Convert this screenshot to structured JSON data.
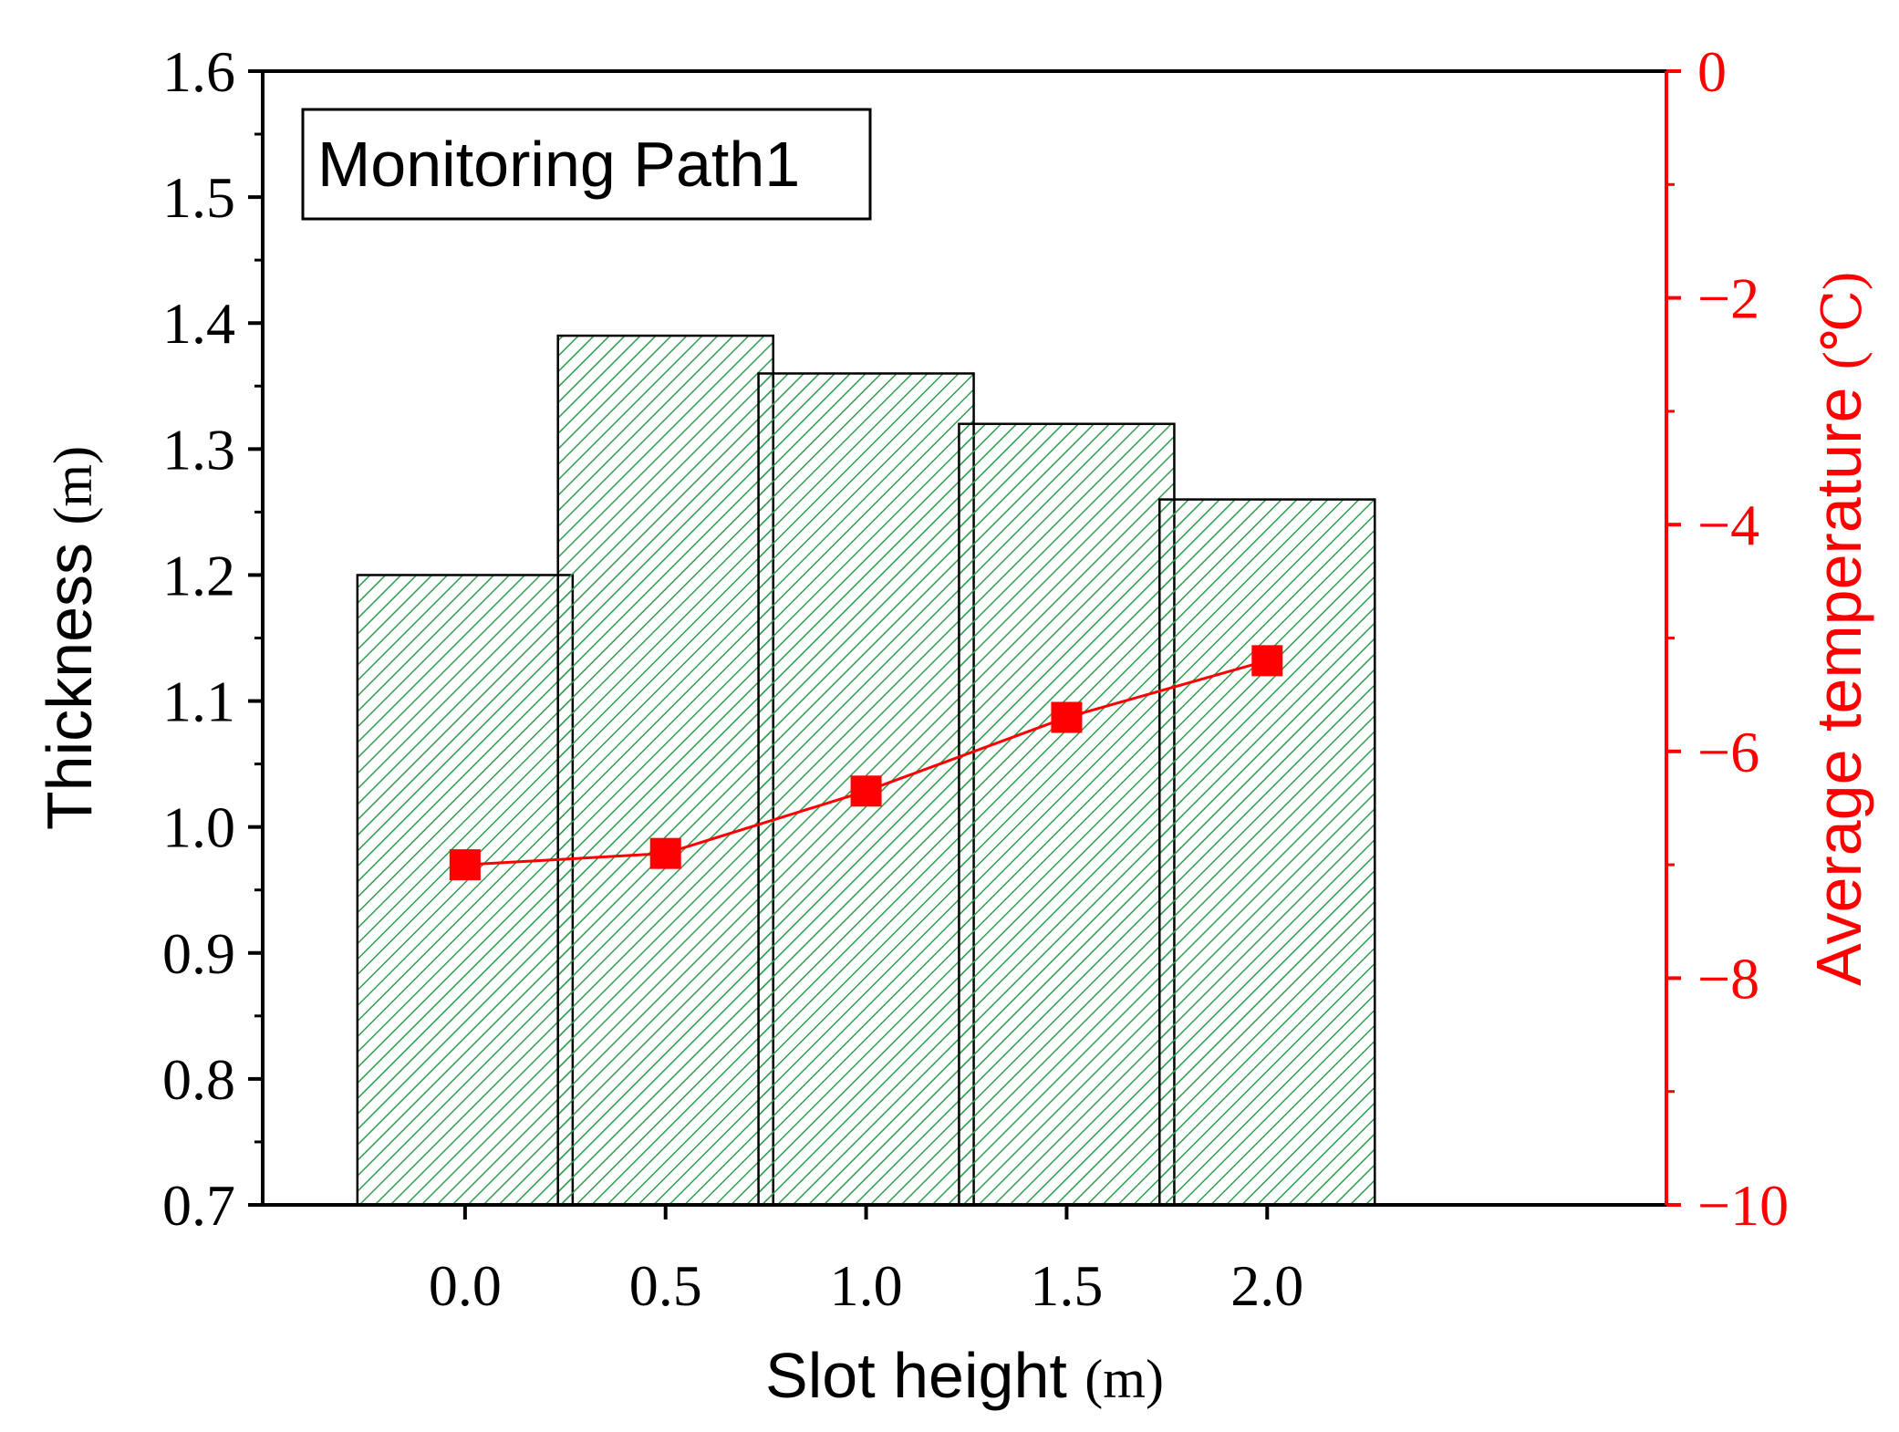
{
  "chart_data": {
    "type": "bar",
    "title": "",
    "annotation": "Monitoring Path1",
    "categories": [
      "0.0",
      "0.5",
      "1.0",
      "1.5",
      "2.0"
    ],
    "xlabel": {
      "main": "Slot height",
      "unit": "(m)"
    },
    "ylabel": {
      "main": "Thickness",
      "unit": "(m)"
    },
    "ylim": [
      0.7,
      1.6
    ],
    "yticks": [
      "0.7",
      "0.8",
      "0.9",
      "1.0",
      "1.1",
      "1.2",
      "1.3",
      "1.4",
      "1.5",
      "1.6"
    ],
    "y2label": {
      "main": "Average temperature",
      "unit": "(℃)"
    },
    "y2lim": [
      -10,
      0
    ],
    "y2ticks": [
      "−10",
      "−8",
      "−6",
      "−4",
      "−2",
      "0"
    ],
    "series": [
      {
        "name": "Thickness",
        "type": "bar",
        "axis": "left",
        "values": [
          1.2,
          1.39,
          1.36,
          1.32,
          1.26
        ]
      },
      {
        "name": "Average temperature",
        "type": "line",
        "axis": "right",
        "values": [
          -7.0,
          -6.9,
          -6.35,
          -5.7,
          -5.2
        ]
      }
    ],
    "grid": false,
    "colors": {
      "bar_hatch": "#2e9e4f",
      "bar_edge": "#000000",
      "line": "#ff0000",
      "right_axis": "#ff0000",
      "axis": "#000000"
    }
  }
}
